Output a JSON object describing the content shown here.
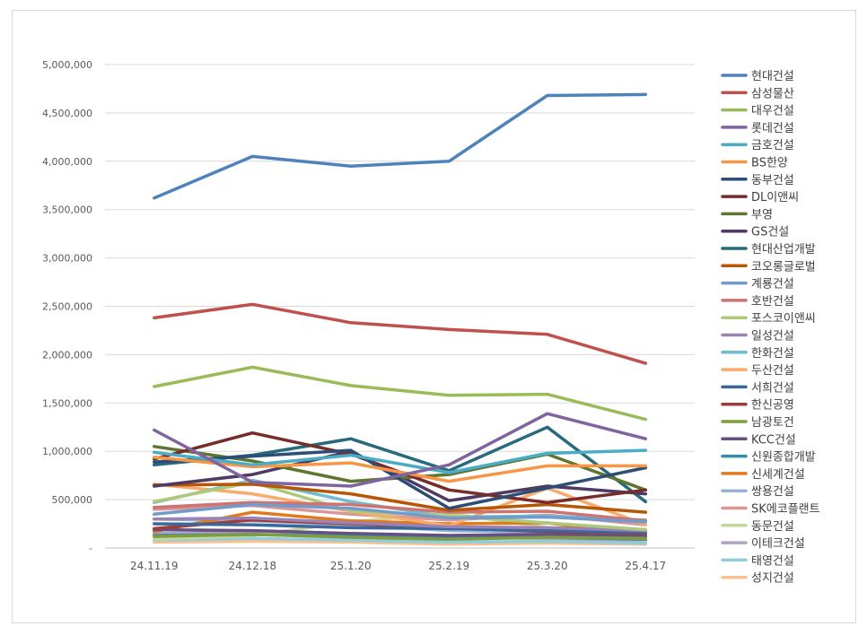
{
  "chart_data": {
    "type": "line",
    "title": "",
    "xlabel": "",
    "ylabel": "",
    "ylim": [
      0,
      5000000
    ],
    "yticks": [
      0,
      500000,
      1000000,
      1500000,
      2000000,
      2500000,
      3000000,
      3500000,
      4000000,
      4500000,
      5000000
    ],
    "ytick_labels": [
      "-",
      "500,000",
      "1,000,000",
      "1,500,000",
      "2,000,000",
      "2,500,000",
      "3,000,000",
      "3,500,000",
      "4,000,000",
      "4,500,000",
      "5,000,000"
    ],
    "grid": true,
    "legend_position": "right",
    "categories": [
      "24.11.19",
      "24.12.18",
      "25.1.20",
      "25.2.19",
      "25.3.20",
      "25.4.17"
    ],
    "series": [
      {
        "name": "현대건설",
        "color": "#4f81bd",
        "values": [
          3620000,
          4050000,
          3950000,
          4000000,
          4680000,
          4690000
        ]
      },
      {
        "name": "삼성물산",
        "color": "#c0504d",
        "values": [
          2380000,
          2520000,
          2330000,
          2260000,
          2210000,
          1910000
        ]
      },
      {
        "name": "대우건설",
        "color": "#9bbb59",
        "values": [
          1670000,
          1870000,
          1680000,
          1580000,
          1590000,
          1330000
        ]
      },
      {
        "name": "롯데건설",
        "color": "#8064a2",
        "values": [
          1220000,
          680000,
          640000,
          860000,
          1390000,
          1130000
        ]
      },
      {
        "name": "금호건설",
        "color": "#4bacc6",
        "values": [
          990000,
          860000,
          960000,
          780000,
          980000,
          1010000
        ]
      },
      {
        "name": "BS한양",
        "color": "#f79646",
        "values": [
          940000,
          840000,
          880000,
          690000,
          850000,
          850000
        ]
      },
      {
        "name": "동부건설",
        "color": "#2c4d75",
        "values": [
          890000,
          950000,
          1010000,
          410000,
          620000,
          830000
        ]
      },
      {
        "name": "DL이앤씨",
        "color": "#772c2a",
        "values": [
          920000,
          1190000,
          970000,
          600000,
          470000,
          600000
        ]
      },
      {
        "name": "부영",
        "color": "#5f7530",
        "values": [
          1050000,
          900000,
          690000,
          760000,
          970000,
          600000
        ]
      },
      {
        "name": "GS건설",
        "color": "#4d3b62",
        "values": [
          640000,
          760000,
          1000000,
          490000,
          640000,
          560000
        ]
      },
      {
        "name": "현대산업개발",
        "color": "#276a7c",
        "values": [
          860000,
          960000,
          1130000,
          800000,
          1250000,
          480000
        ]
      },
      {
        "name": "코오롱글로벌",
        "color": "#b65708",
        "values": [
          650000,
          660000,
          560000,
          390000,
          450000,
          370000
        ]
      },
      {
        "name": "계룡건설",
        "color": "#729aca",
        "values": [
          350000,
          450000,
          410000,
          310000,
          320000,
          270000
        ]
      },
      {
        "name": "호반건설",
        "color": "#cd7371",
        "values": [
          420000,
          470000,
          450000,
          370000,
          380000,
          280000
        ]
      },
      {
        "name": "포스코이앤씨",
        "color": "#afc97a",
        "values": [
          480000,
          680000,
          380000,
          330000,
          260000,
          190000
        ]
      },
      {
        "name": "일성건설",
        "color": "#9983b5",
        "values": [
          300000,
          310000,
          260000,
          220000,
          210000,
          180000
        ]
      },
      {
        "name": "한화건설",
        "color": "#6fbdd1",
        "values": [
          470000,
          700000,
          480000,
          320000,
          330000,
          290000
        ]
      },
      {
        "name": "두산건설",
        "color": "#f9ab6b",
        "values": [
          660000,
          560000,
          380000,
          230000,
          620000,
          240000
        ]
      },
      {
        "name": "서희건설",
        "color": "#3a679c",
        "values": [
          250000,
          240000,
          210000,
          200000,
          180000,
          160000
        ]
      },
      {
        "name": "한신공영",
        "color": "#9f3b38",
        "values": [
          200000,
          290000,
          250000,
          210000,
          170000,
          150000
        ]
      },
      {
        "name": "남광토건",
        "color": "#7f9d40",
        "values": [
          120000,
          140000,
          110000,
          90000,
          110000,
          100000
        ]
      },
      {
        "name": "KCC건설",
        "color": "#664f83",
        "values": [
          190000,
          180000,
          150000,
          130000,
          140000,
          120000
        ]
      },
      {
        "name": "신원종합개발",
        "color": "#358ea6",
        "values": [
          130000,
          140000,
          120000,
          100000,
          110000,
          90000
        ]
      },
      {
        "name": "신세계건설",
        "color": "#e1791f",
        "values": [
          170000,
          370000,
          280000,
          250000,
          260000,
          130000
        ]
      },
      {
        "name": "쌍용건설",
        "color": "#95b3d7",
        "values": [
          300000,
          280000,
          240000,
          180000,
          160000,
          130000
        ]
      },
      {
        "name": "SK에코플랜트",
        "color": "#d99694",
        "values": [
          400000,
          440000,
          350000,
          290000,
          340000,
          240000
        ]
      },
      {
        "name": "동문건설",
        "color": "#c3d69b",
        "values": [
          90000,
          130000,
          270000,
          360000,
          210000,
          80000
        ]
      },
      {
        "name": "이테크건설",
        "color": "#b3a2c7",
        "values": [
          150000,
          160000,
          140000,
          110000,
          100000,
          80000
        ]
      },
      {
        "name": "태영건설",
        "color": "#92cddc",
        "values": [
          80000,
          100000,
          80000,
          60000,
          70000,
          50000
        ]
      },
      {
        "name": "성지건설",
        "color": "#fac090",
        "values": [
          60000,
          70000,
          60000,
          40000,
          50000,
          40000
        ]
      }
    ]
  }
}
